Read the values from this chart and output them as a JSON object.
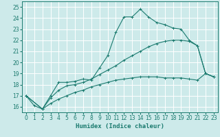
{
  "xlabel": "Humidex (Indice chaleur)",
  "ylabel": "",
  "background_color": "#cdeaea",
  "grid_color": "#b0d4d4",
  "line_color": "#1a7a6e",
  "xlim": [
    -0.5,
    23.5
  ],
  "ylim": [
    15.5,
    25.5
  ],
  "xticks": [
    0,
    1,
    2,
    3,
    4,
    5,
    6,
    7,
    8,
    9,
    10,
    11,
    12,
    13,
    14,
    15,
    16,
    17,
    18,
    19,
    20,
    21,
    22,
    23
  ],
  "yticks": [
    16,
    17,
    18,
    19,
    20,
    21,
    22,
    23,
    24,
    25
  ],
  "line1_x": [
    0,
    1,
    2,
    3,
    4,
    5,
    6,
    7,
    8,
    9,
    10,
    11,
    12,
    13,
    14,
    15,
    16,
    17,
    18,
    19,
    20,
    21,
    22,
    23
  ],
  "line1_y": [
    17.0,
    16.1,
    15.8,
    17.0,
    18.2,
    18.2,
    18.3,
    18.5,
    18.4,
    19.5,
    20.6,
    22.7,
    24.1,
    24.1,
    24.8,
    24.1,
    23.6,
    23.4,
    23.1,
    23.0,
    22.0,
    21.5,
    19.0,
    18.7
  ],
  "line2_x": [
    0,
    2,
    3,
    4,
    5,
    6,
    7,
    8,
    9,
    10,
    11,
    12,
    13,
    14,
    15,
    16,
    17,
    18,
    19,
    20,
    21,
    22,
    23
  ],
  "line2_y": [
    17.0,
    15.8,
    16.8,
    17.5,
    17.9,
    18.0,
    18.2,
    18.5,
    18.9,
    19.3,
    19.7,
    20.2,
    20.6,
    21.0,
    21.4,
    21.7,
    21.9,
    22.0,
    22.0,
    21.9,
    21.5,
    19.0,
    18.7
  ],
  "line3_x": [
    0,
    2,
    3,
    4,
    5,
    6,
    7,
    8,
    9,
    10,
    11,
    12,
    13,
    14,
    15,
    16,
    17,
    18,
    19,
    20,
    21,
    22,
    23
  ],
  "line3_y": [
    17.0,
    15.8,
    16.3,
    16.7,
    17.0,
    17.3,
    17.5,
    17.8,
    18.0,
    18.2,
    18.4,
    18.5,
    18.6,
    18.7,
    18.7,
    18.7,
    18.6,
    18.6,
    18.6,
    18.5,
    18.4,
    19.0,
    18.7
  ]
}
